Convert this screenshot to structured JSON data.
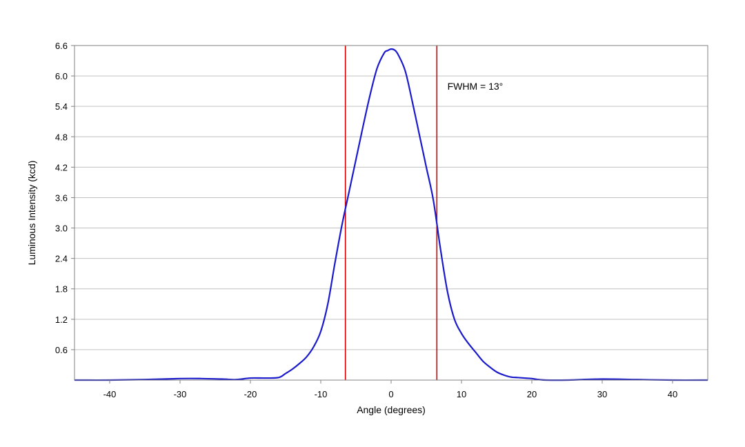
{
  "chart_data": {
    "type": "line",
    "title": "",
    "xlabel": "Angle (degrees)",
    "ylabel": "Luminous Intensity (kcd)",
    "xlim": [
      -45,
      45
    ],
    "ylim": [
      0,
      6.6
    ],
    "x_ticks": [
      -40,
      -30,
      -20,
      -10,
      0,
      10,
      20,
      30,
      40
    ],
    "x_tick_labels": [
      "-40",
      "-30",
      "-20",
      "-10",
      "0",
      "10",
      "20",
      "30",
      "40"
    ],
    "y_ticks": [
      0.6,
      1.2,
      1.8,
      2.4,
      3.0,
      3.6,
      4.2,
      4.8,
      5.4,
      6.0,
      6.6
    ],
    "y_tick_labels": [
      "0.6",
      "1.2",
      "1.8",
      "2.4",
      "3.0",
      "3.6",
      "4.2",
      "4.8",
      "5.4",
      "6.0",
      "6.6"
    ],
    "grid": "horizontal",
    "legend": "none",
    "series": [
      {
        "color": "#1a1acc",
        "x": [
          -45,
          -40,
          -35,
          -30,
          -27,
          -24,
          -22,
          -20,
          -18,
          -16,
          -15,
          -14,
          -13,
          -12,
          -11,
          -10,
          -9,
          -8,
          -7,
          -6,
          -5,
          -4,
          -3,
          -2,
          -1,
          -0.5,
          0,
          0.5,
          1,
          2,
          3,
          4,
          5,
          6,
          7,
          8,
          9,
          10,
          11,
          12,
          13,
          14,
          15,
          16,
          17,
          18,
          19,
          20,
          21,
          22,
          25,
          30,
          35,
          40,
          45
        ],
        "y": [
          0.0,
          0.0,
          0.01,
          0.03,
          0.03,
          0.02,
          0.01,
          0.04,
          0.04,
          0.05,
          0.13,
          0.22,
          0.33,
          0.46,
          0.66,
          0.96,
          1.5,
          2.3,
          3.05,
          3.7,
          4.35,
          5.0,
          5.62,
          6.15,
          6.45,
          6.5,
          6.53,
          6.51,
          6.42,
          6.1,
          5.5,
          4.85,
          4.2,
          3.55,
          2.6,
          1.75,
          1.2,
          0.92,
          0.72,
          0.55,
          0.38,
          0.26,
          0.16,
          0.1,
          0.06,
          0.05,
          0.04,
          0.03,
          0.01,
          0.0,
          0.0,
          0.02,
          0.01,
          0.0,
          0.0
        ]
      }
    ],
    "reference_lines": [
      {
        "x": -6.5,
        "color": "#cc0000"
      },
      {
        "x": 6.5,
        "color": "#cc0000"
      }
    ],
    "annotations": [
      {
        "text": "FWHM = 13°",
        "x": 8,
        "y": 5.8
      }
    ],
    "colors": {
      "grid": "#c0c0c0",
      "frame": "#808080",
      "curve": "#1a1acc",
      "reference": "#cc0000"
    }
  }
}
